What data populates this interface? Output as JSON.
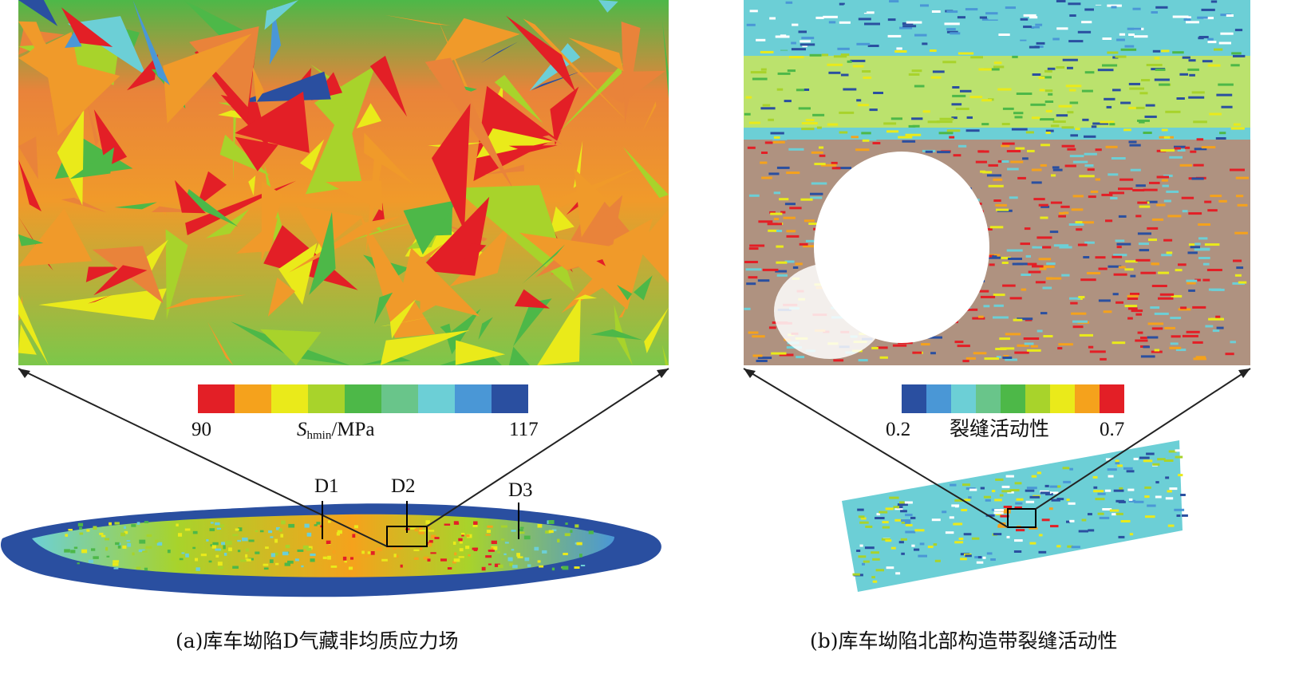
{
  "panel_a": {
    "colorbar": {
      "min_label": "90",
      "max_label": "117",
      "unit_symbol": "S",
      "unit_subscript": "hmin",
      "unit_rest": "/MPa",
      "colors": [
        "#e31f26",
        "#f5a21c",
        "#eaea1a",
        "#a8d32b",
        "#4db848",
        "#69c58a",
        "#6ccfd6",
        "#4a97d6",
        "#2a4fa0"
      ]
    },
    "wells": [
      "D1",
      "D2",
      "D3"
    ],
    "caption": "(a)库车坳陷D气藏非均质应力场"
  },
  "panel_b": {
    "colorbar": {
      "min_label": "0.2",
      "title": "裂缝活动性",
      "max_label": "0.7",
      "colors": [
        "#2a4fa0",
        "#4a97d6",
        "#6ccfd6",
        "#69c58a",
        "#4db848",
        "#a8d32b",
        "#eaea1a",
        "#f5a21c",
        "#e31f26"
      ]
    },
    "caption": "(b)库车坳陷北部构造带裂缝活动性"
  }
}
